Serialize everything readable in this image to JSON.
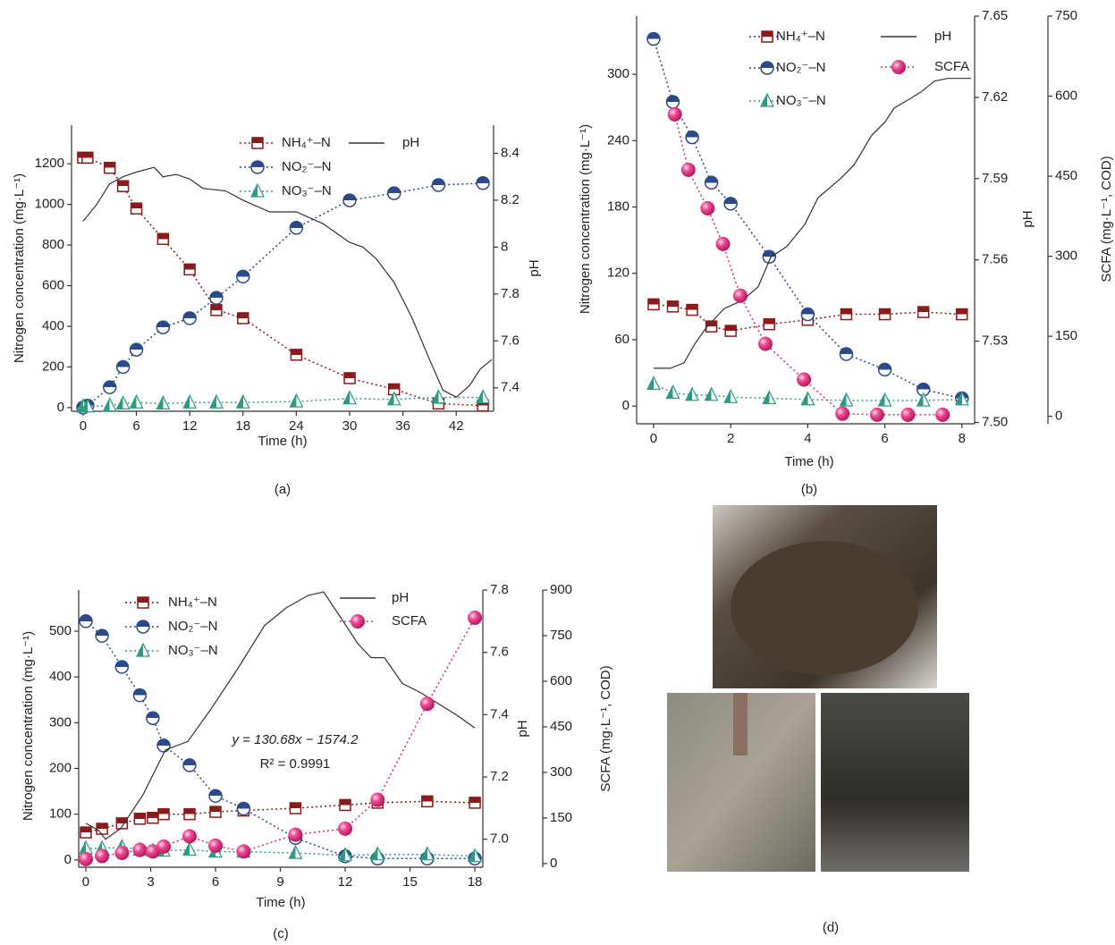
{
  "chart_data": [
    {
      "type": "line",
      "caption": "(a)",
      "xlabel": "Time (h)",
      "ylabel": "Nitrogen concentration (mg·L⁻¹)",
      "y2label": "pH",
      "xlim": [
        -1.3,
        46.2
      ],
      "xticks": [
        0,
        6,
        12,
        18,
        24,
        30,
        36,
        42
      ],
      "ylim": [
        -18,
        1390
      ],
      "yticks": [
        0,
        200,
        400,
        600,
        800,
        1000,
        1200
      ],
      "y2lim": [
        7.3,
        8.52
      ],
      "y2ticks": [
        7.4,
        7.6,
        7.8,
        8.0,
        8.2,
        8.4
      ],
      "series": [
        {
          "name": "NH₄⁺–N",
          "color": "#8b1a1a",
          "marker": "square",
          "linestyle": "dotted",
          "axis": "y",
          "x": [
            0,
            0.5,
            3,
            4.5,
            6,
            9,
            12,
            15,
            18,
            24,
            30,
            35,
            40,
            45
          ],
          "values": [
            1230,
            1230,
            1180,
            1090,
            980,
            830,
            680,
            480,
            440,
            260,
            145,
            90,
            20,
            10
          ]
        },
        {
          "name": "NO₂⁻–N",
          "color": "#2b4a8a",
          "marker": "circle",
          "linestyle": "dotted",
          "axis": "y",
          "x": [
            0,
            0.5,
            3,
            4.5,
            6,
            9,
            12,
            15,
            18,
            24,
            30,
            35,
            40,
            45
          ],
          "values": [
            0,
            10,
            100,
            200,
            285,
            395,
            440,
            540,
            645,
            885,
            1020,
            1055,
            1095,
            1105
          ]
        },
        {
          "name": "NO₃⁻–N",
          "color": "#2e9a83",
          "marker": "triangle",
          "linestyle": "dotted",
          "axis": "y",
          "x": [
            0,
            0.5,
            3,
            4.5,
            6,
            9,
            12,
            15,
            18,
            24,
            30,
            35,
            40,
            45
          ],
          "values": [
            5,
            5,
            10,
            20,
            25,
            20,
            25,
            25,
            25,
            30,
            45,
            40,
            50,
            50
          ]
        },
        {
          "name": "pH",
          "color": "#333333",
          "marker": "none",
          "linestyle": "solid",
          "axis": "y2",
          "x": [
            0,
            1.5,
            3,
            4.5,
            6,
            8,
            9,
            10.5,
            12,
            13.5,
            16,
            18,
            21,
            24,
            27,
            30,
            31.5,
            33,
            35,
            37,
            39,
            40.5,
            42,
            43.5,
            44.7,
            46
          ],
          "values": [
            8.11,
            8.18,
            8.27,
            8.3,
            8.32,
            8.34,
            8.3,
            8.31,
            8.29,
            8.25,
            8.24,
            8.2,
            8.15,
            8.15,
            8.1,
            8.02,
            8.0,
            7.95,
            7.85,
            7.7,
            7.52,
            7.39,
            7.36,
            7.41,
            7.48,
            7.52
          ]
        }
      ]
    },
    {
      "type": "line",
      "caption": "(b)",
      "xlabel": "Time (h)",
      "ylabel": "Nitrogen concentration (mg·L⁻¹)",
      "y2label": "pH",
      "y3label": "SCFA (mg·L⁻¹, COD)",
      "xlim": [
        -0.44,
        8.33
      ],
      "xticks": [
        0,
        2,
        4,
        6,
        8
      ],
      "ylim": [
        -16,
        352.6
      ],
      "yticks": [
        0,
        60,
        120,
        180,
        240,
        300
      ],
      "y2lim": [
        7.4995,
        7.65
      ],
      "y2ticks": [
        {
          "value": 7.5,
          "label": "7.50"
        },
        7.53,
        7.56,
        7.59,
        7.62,
        7.65
      ],
      "y3lim": [
        -14,
        750
      ],
      "y3ticks": [
        0,
        150,
        300,
        450,
        600,
        750
      ],
      "series": [
        {
          "name": "NH₄⁺–N",
          "color": "#8b1a1a",
          "marker": "square",
          "linestyle": "dotted",
          "axis": "y",
          "x": [
            0,
            0.5,
            1,
            1.5,
            2,
            3,
            4,
            5,
            6,
            7,
            8
          ],
          "values": [
            92,
            90,
            87,
            72,
            68,
            74,
            78,
            83,
            83,
            85,
            83
          ]
        },
        {
          "name": "NO₂⁻–N",
          "color": "#2b4a8a",
          "marker": "circle",
          "linestyle": "dotted",
          "axis": "y",
          "x": [
            0,
            0.5,
            1,
            1.5,
            2,
            3,
            4,
            5,
            6,
            7,
            8
          ],
          "values": [
            332,
            275,
            243,
            202,
            183,
            135,
            83,
            47,
            33,
            15,
            7
          ]
        },
        {
          "name": "NO₃⁻–N",
          "color": "#2e9a83",
          "marker": "triangle",
          "linestyle": "dotted",
          "axis": "y",
          "x": [
            0,
            0.5,
            1,
            1.5,
            2,
            3,
            4,
            5,
            6,
            7,
            8
          ],
          "values": [
            20,
            12,
            10,
            10,
            8,
            7,
            6,
            5,
            5,
            5,
            6
          ]
        },
        {
          "name": "pH",
          "color": "#333333",
          "marker": "none",
          "linestyle": "solid",
          "axis": "y2",
          "x": [
            0,
            0.44,
            0.79,
            1.07,
            1.37,
            1.83,
            2.3,
            2.71,
            3.04,
            3.46,
            3.92,
            4.27,
            4.85,
            5.2,
            5.66,
            6.01,
            6.24,
            6.71,
            6.94,
            7.29,
            7.63,
            7.98,
            8.24
          ],
          "values": [
            7.52,
            7.52,
            7.522,
            7.529,
            7.535,
            7.542,
            7.545,
            7.55,
            7.561,
            7.565,
            7.573,
            7.583,
            7.59,
            7.595,
            7.606,
            7.611,
            7.616,
            7.62,
            7.622,
            7.626,
            7.627,
            7.627,
            7.627
          ]
        },
        {
          "name": "SCFA",
          "color": "#e0287a",
          "marker": "sphere",
          "linestyle": "dotted",
          "axis": "y3",
          "x": [
            0.55,
            0.9,
            1.4,
            1.8,
            2.25,
            2.9,
            3.9,
            4.9,
            5.8,
            6.6,
            7.5
          ],
          "values": [
            566,
            462,
            390,
            323,
            226,
            136,
            69,
            5,
            3,
            3,
            3
          ]
        }
      ]
    },
    {
      "type": "line",
      "caption": "(c)",
      "xlabel": "Time (h)",
      "ylabel": "Nitrogen concentration (mg·L⁻¹)",
      "y2label": "pH",
      "y3label": "SCFA (mg·L⁻¹, COD)",
      "annotations": [
        "y = 130.68x − 1574.2",
        "R² = 0.9991"
      ],
      "xlim": [
        -0.33,
        18.37
      ],
      "xticks": [
        0,
        3,
        6,
        9,
        12,
        15,
        18
      ],
      "ylim": [
        -16,
        590
      ],
      "yticks": [
        0,
        100,
        200,
        300,
        400,
        500
      ],
      "y2lim": [
        6.91,
        7.8
      ],
      "y2ticks": [
        {
          "value": 7.0,
          "label": "7.0"
        },
        7.2,
        7.4,
        7.6,
        7.8
      ],
      "y3lim": [
        -12,
        900
      ],
      "y3ticks": [
        0,
        150,
        300,
        450,
        600,
        750,
        900
      ],
      "series": [
        {
          "name": "NH₄⁺–N",
          "color": "#8b1a1a",
          "marker": "square",
          "linestyle": "dotted",
          "axis": "y",
          "x": [
            0,
            0.75,
            1.67,
            2.5,
            3.1,
            3.6,
            4.8,
            6,
            7.3,
            9.7,
            12,
            13.5,
            15.8,
            18
          ],
          "values": [
            60,
            68,
            80,
            90,
            92,
            100,
            100,
            105,
            108,
            113,
            120,
            125,
            128,
            125
          ]
        },
        {
          "name": "NO₂⁻–N",
          "color": "#2b4a8a",
          "marker": "circle",
          "linestyle": "dotted",
          "axis": "y",
          "x": [
            0,
            0.75,
            1.67,
            2.5,
            3.1,
            3.6,
            4.8,
            6,
            7.3,
            9.7,
            12,
            13.5,
            15.8,
            18
          ],
          "values": [
            522,
            490,
            422,
            360,
            310,
            250,
            207,
            140,
            112,
            48,
            8,
            3,
            3,
            3
          ]
        },
        {
          "name": "NO₃⁻–N",
          "color": "#2e9a83",
          "marker": "triangle",
          "linestyle": "dotted",
          "axis": "y",
          "x": [
            0,
            0.75,
            1.67,
            2.5,
            3.1,
            3.6,
            4.8,
            6,
            7.3,
            9.7,
            12,
            13.5,
            15.8,
            18
          ],
          "values": [
            25,
            25,
            28,
            22,
            20,
            20,
            22,
            18,
            18,
            15,
            10,
            12,
            12,
            8
          ]
        },
        {
          "name": "pH",
          "color": "#333333",
          "marker": "none",
          "linestyle": "solid",
          "axis": "y2",
          "x": [
            0,
            0.58,
            0.91,
            1.61,
            2.65,
            3.68,
            4.72,
            5.75,
            6.99,
            8.27,
            9.27,
            10.3,
            11.0,
            11.96,
            12.58,
            13.2,
            13.82,
            14.65,
            15.48,
            17.13,
            18
          ],
          "values": [
            7.051,
            7.029,
            7.0,
            7.034,
            7.143,
            7.286,
            7.314,
            7.414,
            7.543,
            7.686,
            7.743,
            7.783,
            7.794,
            7.694,
            7.629,
            7.583,
            7.583,
            7.5,
            7.471,
            7.4,
            7.357
          ]
        },
        {
          "name": "SCFA",
          "color": "#e0287a",
          "marker": "sphere",
          "linestyle": "dotted",
          "axis": "y3",
          "x": [
            0,
            0.75,
            1.67,
            2.5,
            3.1,
            3.6,
            4.8,
            6,
            7.3,
            9.7,
            12,
            13.5,
            15.8,
            18
          ],
          "values": [
            15,
            25,
            35,
            45,
            40,
            56,
            90,
            59,
            40,
            95,
            115,
            210,
            526,
            809
          ]
        }
      ]
    }
  ],
  "panel_d": {
    "caption": "(d)"
  }
}
